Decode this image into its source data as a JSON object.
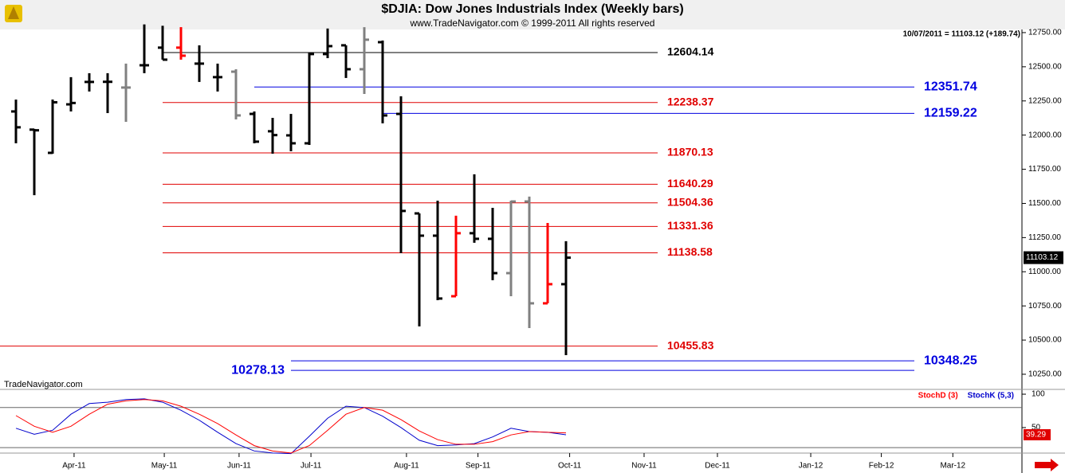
{
  "header": {
    "title": "$DJIA:  Dow Jones Industrials Index  (Weekly bars)",
    "subtitle": "www.TradeNavigator.com © 1999-2011 All rights reserved",
    "quote": "10/07/2011 = 11103.12 (+189.74)",
    "watermark": "TradeNavigator.com"
  },
  "chart_data": [
    {
      "type": "ohlc",
      "x": [
        0,
        1,
        2,
        3,
        4,
        5,
        6,
        7,
        8,
        9,
        10,
        11,
        12,
        13,
        14,
        15,
        16,
        17,
        18,
        19,
        20,
        21,
        22,
        23,
        24,
        25,
        26,
        27,
        28,
        29,
        30
      ],
      "open": [
        12173,
        12040,
        11870,
        12225,
        12389,
        12390,
        12348,
        12511,
        12640,
        12640,
        12523,
        12424,
        12464,
        12155,
        12028,
        11998,
        11940,
        12593,
        12657,
        12482,
        12680,
        12155,
        11427,
        11264,
        10821,
        11282,
        11241,
        10990,
        11514,
        10769,
        10909
      ],
      "high": [
        12260,
        12045,
        12260,
        12424,
        12453,
        12453,
        12523,
        12810,
        12800,
        12790,
        12657,
        12523,
        12482,
        12173,
        12126,
        12155,
        12604,
        12780,
        12657,
        12790,
        12692,
        12284,
        11427,
        11520,
        11410,
        11713,
        11468,
        11520,
        11550,
        11357,
        11224
      ],
      "low": [
        11940,
        11560,
        11864,
        12173,
        12319,
        12161,
        12097,
        12453,
        12552,
        12552,
        12389,
        12319,
        12115,
        11940,
        11864,
        11882,
        11928,
        12563,
        12418,
        12301,
        12086,
        11136,
        10600,
        10792,
        10821,
        11212,
        10938,
        10821,
        10588,
        10769,
        10390
      ],
      "close": [
        12057,
        12035,
        12240,
        12235,
        12389,
        12390,
        12348,
        12511,
        12552,
        12581,
        12523,
        12424,
        12144,
        11952,
        12000,
        11940,
        12593,
        12651,
        12482,
        12698,
        12144,
        11445,
        11264,
        10804,
        11282,
        11241,
        10990,
        11514,
        10769,
        10909,
        11103.12
      ],
      "colors": [
        "#000000",
        "#000000",
        "#000000",
        "#000000",
        "#000000",
        "#000000",
        "#808080",
        "#000000",
        "#000000",
        "#ff0000",
        "#000000",
        "#000000",
        "#808080",
        "#000000",
        "#000000",
        "#000000",
        "#000000",
        "#000000",
        "#000000",
        "#808080",
        "#000000",
        "#000000",
        "#000000",
        "#000000",
        "#ff0000",
        "#000000",
        "#000000",
        "#808080",
        "#808080",
        "#ff0000",
        "#000000"
      ],
      "xlim": [
        -0.87,
        54.87
      ],
      "xticks": [
        {
          "value": 3.17,
          "label": "Apr-11"
        },
        {
          "value": 8.09,
          "label": "May-11"
        },
        {
          "value": 12.17,
          "label": "Jun-11"
        },
        {
          "value": 16.09,
          "label": "Jul-11"
        },
        {
          "value": 21.3,
          "label": "Aug-11"
        },
        {
          "value": 25.2,
          "label": "Sep-11"
        },
        {
          "value": 30.2,
          "label": "Oct-11"
        },
        {
          "value": 34.26,
          "label": "Nov-11"
        },
        {
          "value": 38.26,
          "label": "Dec-11"
        },
        {
          "value": 43.35,
          "label": "Jan-12"
        },
        {
          "value": 47.2,
          "label": "Feb-12"
        },
        {
          "value": 51.1,
          "label": "Mar-12"
        }
      ],
      "ylim": [
        10145,
        12773
      ],
      "yticks": [
        {
          "value": 12750,
          "label": "12750.00"
        },
        {
          "value": 12500,
          "label": "12500.00"
        },
        {
          "value": 12250,
          "label": "12250.00"
        },
        {
          "value": 12000,
          "label": "12000.00"
        },
        {
          "value": 11750,
          "label": "11750.00"
        },
        {
          "value": 11500,
          "label": "11500.00"
        },
        {
          "value": 11250,
          "label": "11250.00"
        },
        {
          "value": 11000,
          "label": "11000.00"
        },
        {
          "value": 10750,
          "label": "10750.00"
        },
        {
          "value": 10500,
          "label": "10500.00"
        },
        {
          "value": 10250,
          "label": "10250.00"
        }
      ],
      "last_price": 11103.12,
      "levels": [
        {
          "value": 12604.14,
          "color": "#000000",
          "x_start": 8,
          "x_end": 35
        },
        {
          "value": 12238.37,
          "color": "#e00000",
          "x_start": 8,
          "x_end": 35
        },
        {
          "value": 11870.13,
          "color": "#e00000",
          "x_start": 8,
          "x_end": 35
        },
        {
          "value": 11640.29,
          "color": "#e00000",
          "x_start": 8,
          "x_end": 35
        },
        {
          "value": 11504.36,
          "color": "#e00000",
          "x_start": 8,
          "x_end": 35
        },
        {
          "value": 11331.36,
          "color": "#e00000",
          "x_start": 8,
          "x_end": 35
        },
        {
          "value": 11138.58,
          "color": "#e00000",
          "x_start": 8,
          "x_end": 35
        },
        {
          "value": 10455.83,
          "color": "#e00000",
          "x_start": -0.87,
          "x_end": 35
        },
        {
          "value": 12351.74,
          "color": "#0000e0",
          "x_start": 13,
          "x_end": 49
        },
        {
          "value": 12159.22,
          "color": "#0000e0",
          "x_start": 20,
          "x_end": 49
        },
        {
          "value": 10348.25,
          "color": "#0000e0",
          "x_start": 15,
          "x_end": 49
        },
        {
          "value": 10278.13,
          "color": "#0000e0",
          "x_start": 15,
          "x_end": 49,
          "label_side": "left"
        }
      ]
    },
    {
      "type": "line",
      "x": [
        0,
        1,
        2,
        3,
        4,
        5,
        6,
        7,
        8,
        9,
        10,
        11,
        12,
        13,
        14,
        15,
        16,
        17,
        18,
        19,
        20,
        21,
        22,
        23,
        24,
        25,
        26,
        27,
        28,
        29,
        30
      ],
      "series": [
        {
          "name": "StochD (3)",
          "color": "#ff0000",
          "values": [
            68,
            52,
            43,
            52,
            70,
            85,
            90,
            92,
            90,
            82,
            70,
            56,
            39,
            23,
            15,
            12,
            23,
            46,
            70,
            80,
            76,
            62,
            45,
            32,
            25,
            25,
            29,
            39,
            44,
            43,
            42
          ]
        },
        {
          "name": "StochK (5,3)",
          "color": "#0000cc",
          "values": [
            49,
            40,
            46,
            70,
            86,
            88,
            92,
            93,
            88,
            76,
            61,
            43,
            26,
            15,
            12,
            11,
            37,
            64,
            82,
            80,
            67,
            50,
            31,
            23,
            24,
            26,
            36,
            49,
            44,
            43,
            39.29
          ]
        }
      ],
      "xlim": [
        -0.87,
        54.87
      ],
      "ylim": [
        13,
        106
      ],
      "yticks": [
        100,
        50
      ],
      "levels": [
        80,
        20
      ],
      "last_value": 39.29
    }
  ]
}
